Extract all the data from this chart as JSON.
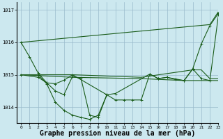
{
  "background_color": "#cce8ef",
  "plot_bg_color": "#cce8ef",
  "grid_color": "#99bbcc",
  "line_color": "#1a5c1a",
  "xlabel": "Graphe pression niveau de la mer (hPa)",
  "xlabel_fontsize": 7,
  "xlim": [
    -0.5,
    23
  ],
  "ylim": [
    1013.5,
    1017.25
  ],
  "yticks": [
    1014,
    1015,
    1016,
    1017
  ],
  "xticks": [
    0,
    1,
    2,
    3,
    4,
    5,
    6,
    7,
    8,
    9,
    10,
    11,
    12,
    13,
    14,
    15,
    16,
    17,
    18,
    19,
    20,
    21,
    22,
    23
  ],
  "series": [
    {
      "x": [
        0,
        22,
        23
      ],
      "y": [
        1016.0,
        1016.55,
        1016.95
      ],
      "marker": false
    },
    {
      "x": [
        0,
        6,
        14,
        20,
        21,
        22,
        23
      ],
      "y": [
        1015.0,
        1015.0,
        1014.92,
        1015.15,
        1015.15,
        1014.88,
        1014.88
      ],
      "marker": false
    },
    {
      "x": [
        0,
        6,
        14,
        19,
        20,
        21,
        22,
        23
      ],
      "y": [
        1015.0,
        1014.92,
        1014.88,
        1014.82,
        1014.82,
        1014.82,
        1014.82,
        1014.82
      ],
      "marker": false
    },
    {
      "x": [
        0,
        1,
        2,
        3,
        4,
        5,
        6,
        10,
        11,
        12,
        13,
        14,
        15,
        16,
        17,
        18,
        19,
        20,
        21,
        22,
        23
      ],
      "y": [
        1016.0,
        1015.55,
        1015.05,
        1014.75,
        1014.72,
        1014.83,
        1015.0,
        1014.38,
        1014.22,
        1014.22,
        1014.22,
        1014.22,
        1015.02,
        1014.88,
        1014.92,
        1014.85,
        1014.82,
        1015.18,
        1015.95,
        1016.52,
        1016.9
      ],
      "marker": true
    },
    {
      "x": [
        0,
        2,
        3,
        4,
        5,
        6,
        7,
        8,
        9,
        10,
        11,
        15,
        16,
        17,
        19,
        20,
        21,
        22,
        23
      ],
      "y": [
        1015.0,
        1014.92,
        1014.75,
        1014.5,
        1014.38,
        1014.95,
        1014.88,
        1013.75,
        1013.68,
        1014.38,
        1014.42,
        1015.02,
        1014.88,
        1014.92,
        1014.82,
        1015.18,
        1014.88,
        1014.82,
        1016.85
      ],
      "marker": true
    },
    {
      "x": [
        2,
        3,
        4,
        5,
        6,
        7,
        8,
        9,
        10
      ],
      "y": [
        1015.0,
        1014.72,
        1014.15,
        1013.9,
        1013.75,
        1013.68,
        1013.62,
        1013.75,
        1014.38
      ],
      "marker": true
    }
  ]
}
